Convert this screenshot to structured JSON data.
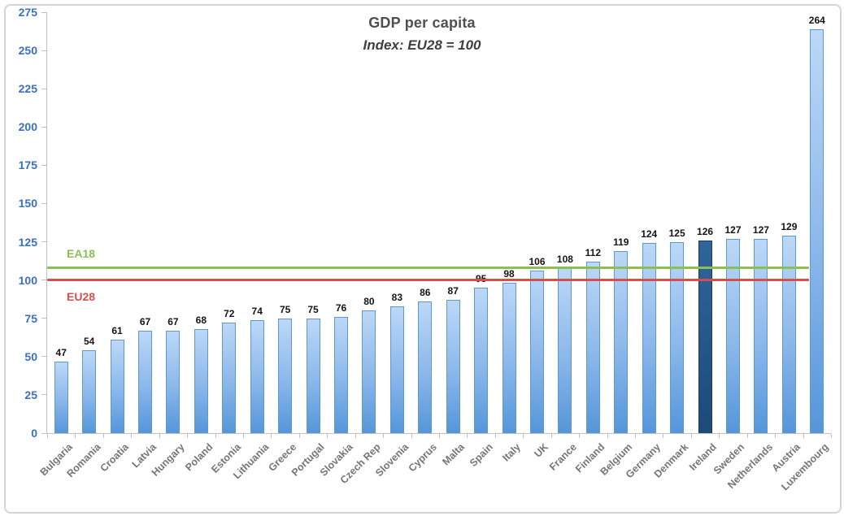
{
  "chart_data": {
    "type": "bar",
    "title": "GDP per capita",
    "subtitle": "Index: EU28 = 100",
    "categories": [
      "Bulgaria",
      "Romania",
      "Croatia",
      "Latvia",
      "Hungary",
      "Poland",
      "Estonia",
      "Lithuania",
      "Greece",
      "Portugal",
      "Slovakia",
      "Czech Rep",
      "Slovenia",
      "Cyprus",
      "Malta",
      "Spain",
      "Italy",
      "UK",
      "France",
      "Finland",
      "Belgium",
      "Germany",
      "Denmark",
      "Ireland",
      "Sweden",
      "Netherlands",
      "Austria",
      "Luxembourg"
    ],
    "values": [
      47,
      54,
      61,
      67,
      67,
      68,
      72,
      74,
      75,
      75,
      76,
      80,
      83,
      86,
      87,
      95,
      98,
      106,
      108,
      112,
      119,
      124,
      125,
      126,
      127,
      127,
      129,
      264
    ],
    "highlight_category": "Ireland",
    "y_axis": {
      "min": 0,
      "max": 275,
      "step": 25
    },
    "reference_lines": [
      {
        "label": "EA18",
        "value": 108,
        "color": "#8CBF51"
      },
      {
        "label": "EU28",
        "value": 100,
        "color": "#D5504B"
      }
    ],
    "grid": false,
    "legend": "none",
    "xlabel": "",
    "ylabel": "",
    "colors": {
      "bar_top": "#BCD8F7",
      "bar_bottom": "#5496DA",
      "bar_border": "#5F97CF",
      "highlight_bar": "#1D4A77",
      "axis_tick_label": "#3A6FC4",
      "value_label": "#141414",
      "category_label": "#757575",
      "axis_line": "#C0C0C0",
      "title_text": "#4F4F4F"
    }
  }
}
